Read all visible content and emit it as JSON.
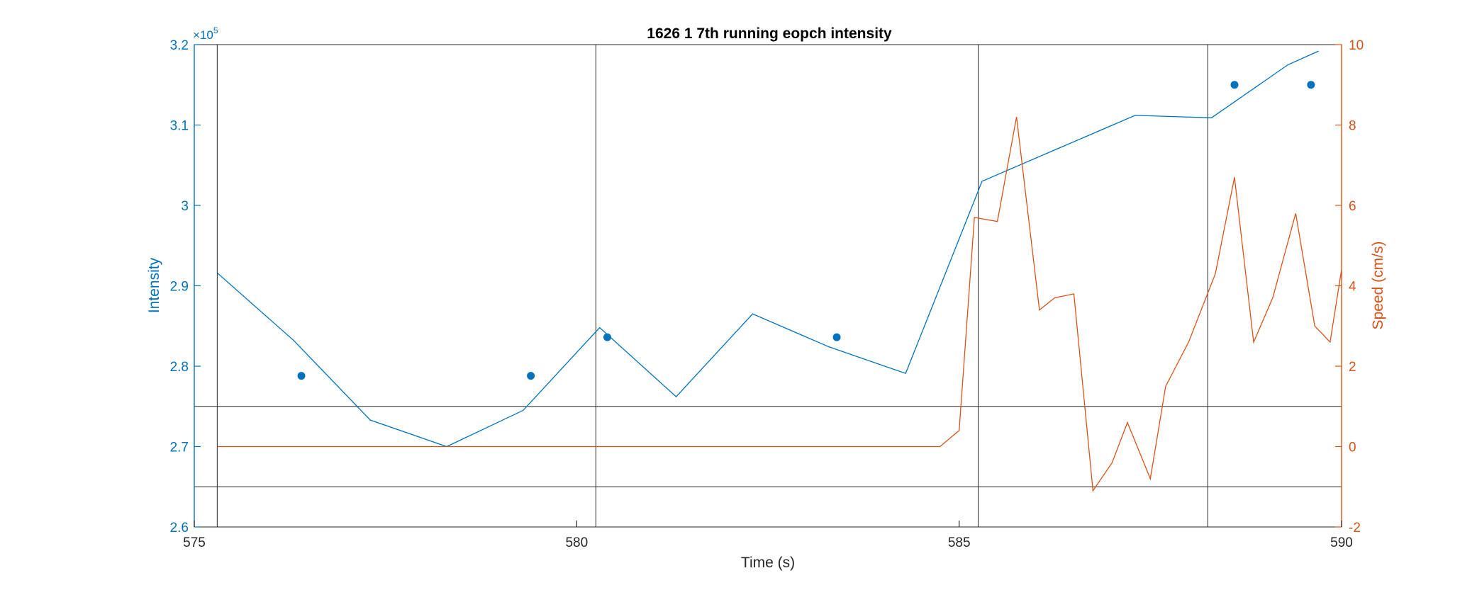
{
  "chart_data": {
    "type": "line",
    "title": "1626 1 7th running eopch intensity",
    "xlabel": "Time (s)",
    "ylabel_left": "Intensity",
    "ylabel_right": "Speed (cm/s)",
    "xlim": [
      575,
      590
    ],
    "ylim_left": [
      260000,
      320000
    ],
    "ylim_right": [
      -2,
      10
    ],
    "x_ticks": [
      "575",
      "580",
      "585",
      "590"
    ],
    "y_left_ticks": [
      "2.6",
      "2.7",
      "2.8",
      "2.9",
      "3",
      "3.1",
      "3.2"
    ],
    "y_right_ticks": [
      "-2",
      "0",
      "2",
      "4",
      "6",
      "8",
      "10"
    ],
    "y_left_exponent_base": "×10",
    "y_left_exponent_power": "5",
    "colors": {
      "left": "#0072BD",
      "right": "#D95319",
      "lines": "#262626"
    },
    "series": [
      {
        "axis": "left",
        "style": "line",
        "x": [
          575.3,
          576.3,
          577.3,
          578.3,
          579.3,
          580.3,
          581.3,
          582.3,
          583.3,
          584.3,
          585.3,
          586.3,
          587.3,
          588.3,
          589.3,
          589.7
        ],
        "values": [
          291600,
          283200,
          273300,
          270000,
          274500,
          284800,
          276200,
          286500,
          282400,
          279100,
          303000,
          307100,
          311200,
          310900,
          317500,
          319200
        ]
      },
      {
        "axis": "left",
        "style": "markers",
        "x": [
          576.4,
          579.4,
          580.4,
          583.4,
          588.6,
          589.6
        ],
        "values": [
          278800,
          278800,
          283600,
          283600,
          315000,
          315000
        ]
      },
      {
        "axis": "right",
        "style": "line",
        "x": [
          575.3,
          584.75,
          585.0,
          585.2,
          585.5,
          585.75,
          586.05,
          586.25,
          586.5,
          586.75,
          587.0,
          587.2,
          587.5,
          587.7,
          588.0,
          588.35,
          588.6,
          588.85,
          589.1,
          589.4,
          589.65,
          589.85,
          590.0
        ],
        "values": [
          0,
          0,
          0.4,
          5.7,
          5.6,
          8.2,
          3.4,
          3.7,
          3.8,
          -1.1,
          -0.4,
          0.6,
          -0.8,
          1.5,
          2.6,
          4.3,
          6.7,
          2.6,
          3.7,
          5.8,
          3.0,
          2.6,
          4.4
        ]
      }
    ],
    "vertical_lines_x": [
      575.3,
      580.25,
      585.25,
      588.25
    ],
    "horizontal_lines_right": [
      1,
      -1
    ],
    "grid": false,
    "legend": "none"
  }
}
